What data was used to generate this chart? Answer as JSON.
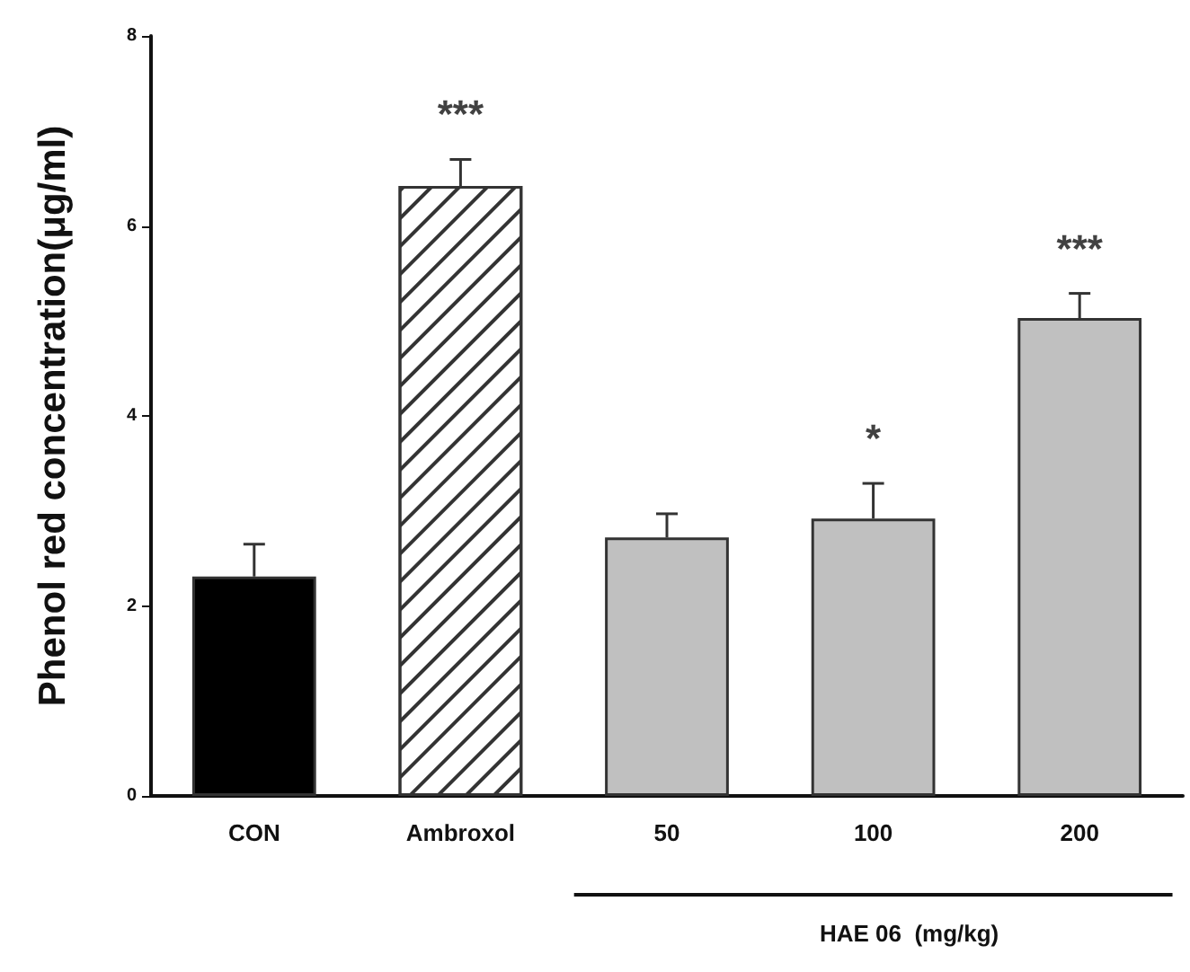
{
  "chart_data": {
    "type": "bar",
    "ylabel": "Phenol red concentration(μg/ml)",
    "categories": [
      "CON",
      "Ambroxol",
      "50",
      "100",
      "200"
    ],
    "values": [
      2.31,
      6.42,
      2.72,
      2.92,
      5.03
    ],
    "colors": [
      "#000000",
      "#ffffff",
      "#c0c0c0",
      "#c0c0c0",
      "#c0c0c0"
    ],
    "errors": [
      0.34,
      0.28,
      0.25,
      0.37,
      0.26
    ],
    "ylim": [
      0,
      8
    ],
    "yticks": [
      0,
      2,
      4,
      6,
      8
    ],
    "grid": false,
    "annotations": [
      {
        "text": "***",
        "x": "Ambroxol",
        "y": 6.42
      },
      {
        "text": "*",
        "x": "100",
        "y": 2.92
      },
      {
        "text": "***",
        "x": "200",
        "y": 5.03
      },
      "HAE 06  (mg/kg)"
    ]
  }
}
